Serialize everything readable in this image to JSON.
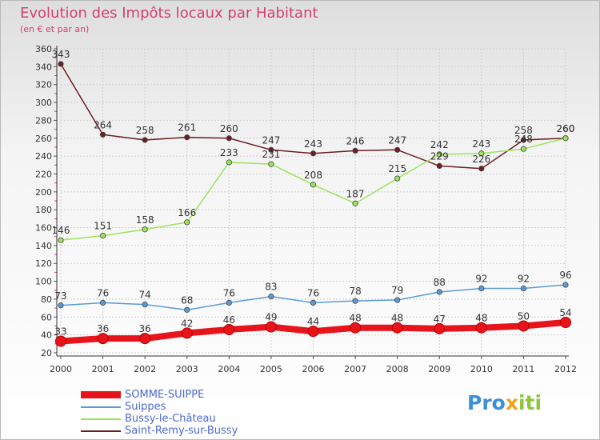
{
  "header": {
    "title": "Evolution des Impôts locaux par Habitant",
    "subtitle": "(en € et par an)"
  },
  "logo": {
    "text": "Proxiti",
    "parts": [
      "Pro",
      "x",
      "iti"
    ]
  },
  "chart_data": {
    "type": "line",
    "title": "Evolution des Impôts locaux par Habitant",
    "subtitle": "(en € et par an)",
    "xlabel": "",
    "ylabel": "",
    "x": [
      "2000",
      "2001",
      "2002",
      "2003",
      "2004",
      "2005",
      "2006",
      "2007",
      "2008",
      "2009",
      "2010",
      "2011",
      "2012"
    ],
    "ylim": [
      20,
      360
    ],
    "yticks": [
      20,
      40,
      60,
      80,
      100,
      120,
      140,
      160,
      180,
      200,
      220,
      240,
      260,
      280,
      300,
      320,
      340,
      360
    ],
    "grid": true,
    "legend_position": "bottom-left",
    "series": [
      {
        "name": "SOMME-SUIPPE",
        "color": "#e8141b",
        "values": [
          33,
          36,
          36,
          42,
          46,
          49,
          44,
          48,
          48,
          47,
          48,
          50,
          54
        ]
      },
      {
        "name": "Suippes",
        "color": "#5b9bd5",
        "values": [
          73,
          76,
          74,
          68,
          76,
          83,
          76,
          78,
          79,
          88,
          92,
          92,
          96
        ]
      },
      {
        "name": "Bussy-le-Château",
        "color": "#9ce35c",
        "values": [
          146,
          151,
          158,
          166,
          233,
          231,
          208,
          187,
          215,
          242,
          243,
          248,
          260
        ]
      },
      {
        "name": "Saint-Remy-sur-Bussy",
        "color": "#6b1f24",
        "values": [
          343,
          264,
          258,
          261,
          260,
          247,
          243,
          246,
          247,
          229,
          226,
          258,
          260
        ]
      }
    ]
  }
}
